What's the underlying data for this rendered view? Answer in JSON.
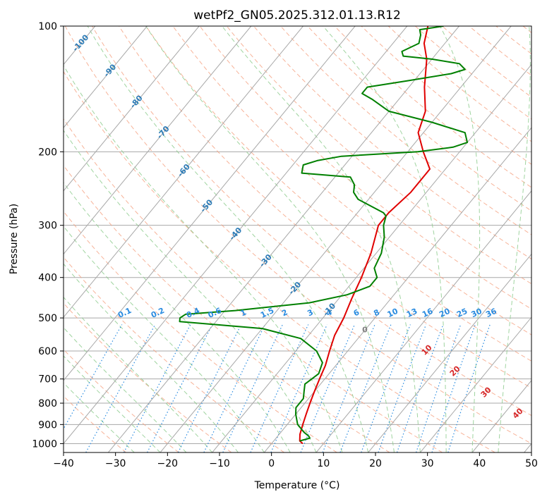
{
  "chart_data": {
    "type": "line",
    "title": "wetPf2_GN05.2025.312.01.13.R12",
    "xlabel": "Temperature (°C)",
    "ylabel": "Pressure (hPa)",
    "xlim": [
      -40,
      50
    ],
    "ylim": [
      1050,
      100
    ],
    "y_scale": "log",
    "x_ticks": [
      -40,
      -30,
      -20,
      -10,
      0,
      10,
      20,
      30,
      40,
      50
    ],
    "x_tick_labels": [
      "−40",
      "−30",
      "−20",
      "−10",
      "0",
      "10",
      "20",
      "30",
      "40",
      "50"
    ],
    "y_ticks": [
      1000,
      900,
      800,
      700,
      600,
      500,
      400,
      300,
      200,
      100
    ],
    "y_tick_labels": [
      "1000",
      "900",
      "800",
      "700",
      "600",
      "500",
      "400",
      "300",
      "200",
      "100"
    ],
    "grid": true,
    "colors": {
      "temperature": "#e00000",
      "dewpoint": "#008000",
      "isotherm": "#a8a8a8",
      "dry_adiabat": "#f5a080",
      "moist_adiabat": "#8fcc8f",
      "mixing_ratio": "#2b8ce0",
      "isotherm_label": "#2c7bb6",
      "moist_label": "#d62728",
      "zero_label": "#808080"
    },
    "series": [
      {
        "key": "temperature",
        "points": [
          [
            1000,
            6
          ],
          [
            985,
            5
          ],
          [
            950,
            4
          ],
          [
            900,
            3
          ],
          [
            850,
            2
          ],
          [
            800,
            1
          ],
          [
            750,
            0
          ],
          [
            700,
            -1
          ],
          [
            650,
            -2
          ],
          [
            600,
            -3.5
          ],
          [
            550,
            -5
          ],
          [
            500,
            -6
          ],
          [
            450,
            -7.5
          ],
          [
            400,
            -9
          ],
          [
            350,
            -11
          ],
          [
            300,
            -14
          ],
          [
            280,
            -14
          ],
          [
            250,
            -13
          ],
          [
            220,
            -13
          ],
          [
            200,
            -17
          ],
          [
            180,
            -21
          ],
          [
            160,
            -23
          ],
          [
            140,
            -27
          ],
          [
            120,
            -31
          ],
          [
            110,
            -34
          ],
          [
            100,
            -36
          ]
        ]
      },
      {
        "key": "dewpoint",
        "points": [
          [
            985,
            5
          ],
          [
            970,
            6.5
          ],
          [
            960,
            6
          ],
          [
            940,
            4.5
          ],
          [
            900,
            2
          ],
          [
            850,
            0
          ],
          [
            820,
            -1
          ],
          [
            780,
            -1
          ],
          [
            750,
            -2
          ],
          [
            720,
            -3
          ],
          [
            700,
            -2.5
          ],
          [
            680,
            -2
          ],
          [
            640,
            -3
          ],
          [
            600,
            -6
          ],
          [
            560,
            -11
          ],
          [
            530,
            -20
          ],
          [
            510,
            -37
          ],
          [
            500,
            -37.5
          ],
          [
            490,
            -37
          ],
          [
            480,
            -28
          ],
          [
            460,
            -15
          ],
          [
            440,
            -9
          ],
          [
            420,
            -6
          ],
          [
            400,
            -6
          ],
          [
            380,
            -8
          ],
          [
            350,
            -9
          ],
          [
            320,
            -11
          ],
          [
            300,
            -13
          ],
          [
            285,
            -14
          ],
          [
            280,
            -15
          ],
          [
            260,
            -22
          ],
          [
            250,
            -24
          ],
          [
            240,
            -25
          ],
          [
            230,
            -27
          ],
          [
            225,
            -37
          ],
          [
            215,
            -38
          ],
          [
            210,
            -36
          ],
          [
            205,
            -32
          ],
          [
            200,
            -18
          ],
          [
            195,
            -12
          ],
          [
            190,
            -10
          ],
          [
            180,
            -12
          ],
          [
            170,
            -20
          ],
          [
            160,
            -30
          ],
          [
            150,
            -35
          ],
          [
            145,
            -38
          ],
          [
            140,
            -38
          ],
          [
            135,
            -31
          ],
          [
            130,
            -24
          ],
          [
            127,
            -22
          ],
          [
            123,
            -24
          ],
          [
            120,
            -30
          ],
          [
            118,
            -36
          ],
          [
            115,
            -37
          ],
          [
            110,
            -35
          ],
          [
            105,
            -36
          ],
          [
            102,
            -37
          ],
          [
            100,
            -33
          ]
        ]
      }
    ],
    "isotherm_labels": [
      {
        "t": -100,
        "p": 110,
        "text": "-100"
      },
      {
        "t": -90,
        "p": 128,
        "text": "-90"
      },
      {
        "t": -80,
        "p": 152,
        "text": "-80"
      },
      {
        "t": -70,
        "p": 180,
        "text": "-70"
      },
      {
        "t": -60,
        "p": 222,
        "text": "-60"
      },
      {
        "t": -50,
        "p": 270,
        "text": "-50"
      },
      {
        "t": -40,
        "p": 315,
        "text": "-40"
      },
      {
        "t": -30,
        "p": 365,
        "text": "-30"
      },
      {
        "t": -20,
        "p": 425,
        "text": "-20"
      },
      {
        "t": -10,
        "p": 478,
        "text": "-10"
      },
      {
        "t": 0,
        "p": 535,
        "text": "0"
      }
    ],
    "mixing_ratio_labels": [
      "0.1",
      "0.2",
      "0.4",
      "0.6",
      "1",
      "1.5",
      "2",
      "3",
      "4",
      "6",
      "8",
      "10",
      "13",
      "16",
      "20",
      "25",
      "30",
      "36"
    ],
    "moist_adiabat_labels": [
      "10",
      "20",
      "30",
      "40"
    ]
  }
}
